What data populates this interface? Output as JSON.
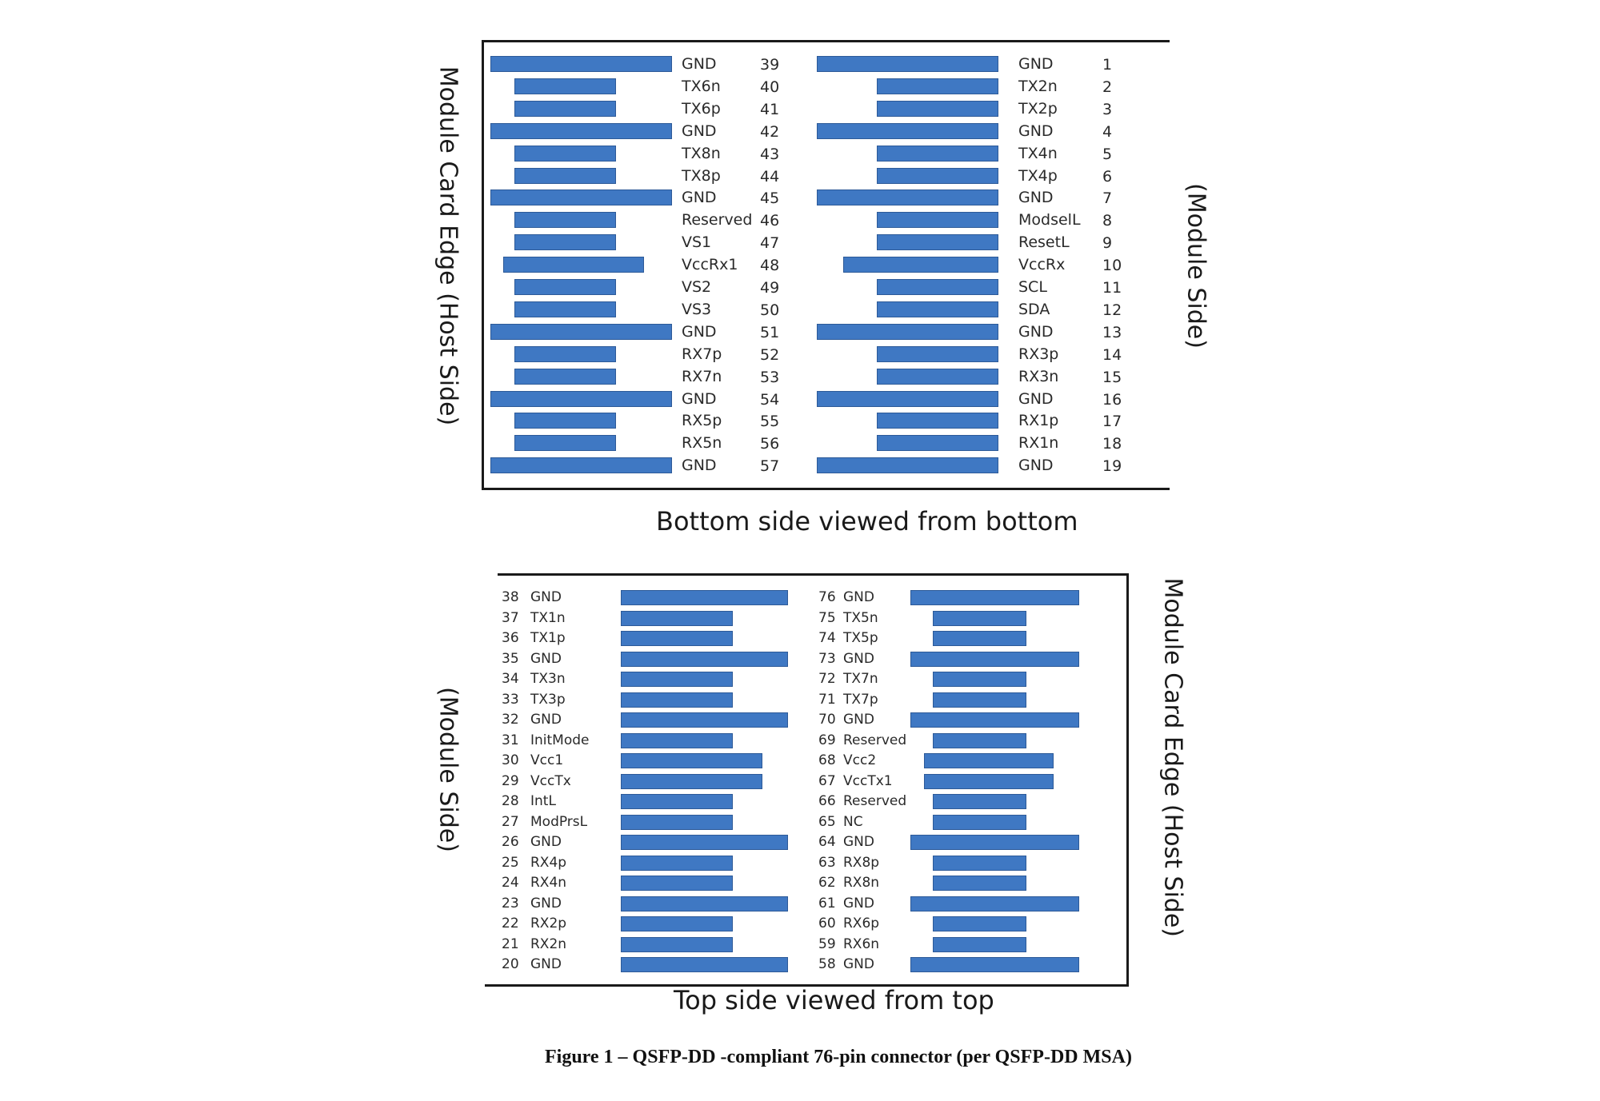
{
  "top_diagram": {
    "caption": "Bottom side viewed from bottom",
    "left_side_label": "Module Card Edge (Host Side)",
    "right_side_label": "(Module Side)",
    "left_column": [
      {
        "pin": "39",
        "signal": "GND",
        "pad": "long"
      },
      {
        "pin": "40",
        "signal": "TX6n",
        "pad": "short"
      },
      {
        "pin": "41",
        "signal": "TX6p",
        "pad": "short"
      },
      {
        "pin": "42",
        "signal": "GND",
        "pad": "long"
      },
      {
        "pin": "43",
        "signal": "TX8n",
        "pad": "short"
      },
      {
        "pin": "44",
        "signal": "TX8p",
        "pad": "short"
      },
      {
        "pin": "45",
        "signal": "GND",
        "pad": "long"
      },
      {
        "pin": "46",
        "signal": "Reserved",
        "pad": "short"
      },
      {
        "pin": "47",
        "signal": "VS1",
        "pad": "short"
      },
      {
        "pin": "48",
        "signal": "VccRx1",
        "pad": "medium"
      },
      {
        "pin": "49",
        "signal": "VS2",
        "pad": "short"
      },
      {
        "pin": "50",
        "signal": "VS3",
        "pad": "short"
      },
      {
        "pin": "51",
        "signal": "GND",
        "pad": "long"
      },
      {
        "pin": "52",
        "signal": "RX7p",
        "pad": "short"
      },
      {
        "pin": "53",
        "signal": "RX7n",
        "pad": "short"
      },
      {
        "pin": "54",
        "signal": "GND",
        "pad": "long"
      },
      {
        "pin": "55",
        "signal": "RX5p",
        "pad": "short"
      },
      {
        "pin": "56",
        "signal": "RX5n",
        "pad": "short"
      },
      {
        "pin": "57",
        "signal": "GND",
        "pad": "long"
      }
    ],
    "right_column": [
      {
        "pin": "1",
        "signal": "GND",
        "pad": "long"
      },
      {
        "pin": "2",
        "signal": "TX2n",
        "pad": "short"
      },
      {
        "pin": "3",
        "signal": "TX2p",
        "pad": "short"
      },
      {
        "pin": "4",
        "signal": "GND",
        "pad": "long"
      },
      {
        "pin": "5",
        "signal": "TX4n",
        "pad": "short"
      },
      {
        "pin": "6",
        "signal": "TX4p",
        "pad": "short"
      },
      {
        "pin": "7",
        "signal": "GND",
        "pad": "long"
      },
      {
        "pin": "8",
        "signal": "ModselL",
        "pad": "short"
      },
      {
        "pin": "9",
        "signal": "ResetL",
        "pad": "short"
      },
      {
        "pin": "10",
        "signal": "VccRx",
        "pad": "medium"
      },
      {
        "pin": "11",
        "signal": "SCL",
        "pad": "short"
      },
      {
        "pin": "12",
        "signal": "SDA",
        "pad": "short"
      },
      {
        "pin": "13",
        "signal": "GND",
        "pad": "long"
      },
      {
        "pin": "14",
        "signal": "RX3p",
        "pad": "short"
      },
      {
        "pin": "15",
        "signal": "RX3n",
        "pad": "short"
      },
      {
        "pin": "16",
        "signal": "GND",
        "pad": "long"
      },
      {
        "pin": "17",
        "signal": "RX1p",
        "pad": "short"
      },
      {
        "pin": "18",
        "signal": "RX1n",
        "pad": "short"
      },
      {
        "pin": "19",
        "signal": "GND",
        "pad": "long"
      }
    ]
  },
  "bottom_diagram": {
    "caption": "Top side viewed from top",
    "left_side_label": "(Module Side)",
    "right_side_label": "Module Card Edge (Host Side)",
    "left_column": [
      {
        "pin": "38",
        "signal": "GND",
        "pad": "long"
      },
      {
        "pin": "37",
        "signal": "TX1n",
        "pad": "short"
      },
      {
        "pin": "36",
        "signal": "TX1p",
        "pad": "short"
      },
      {
        "pin": "35",
        "signal": "GND",
        "pad": "long"
      },
      {
        "pin": "34",
        "signal": "TX3n",
        "pad": "short"
      },
      {
        "pin": "33",
        "signal": "TX3p",
        "pad": "short"
      },
      {
        "pin": "32",
        "signal": "GND",
        "pad": "long"
      },
      {
        "pin": "31",
        "signal": "InitMode",
        "pad": "short"
      },
      {
        "pin": "30",
        "signal": "Vcc1",
        "pad": "medium"
      },
      {
        "pin": "29",
        "signal": "VccTx",
        "pad": "medium"
      },
      {
        "pin": "28",
        "signal": "IntL",
        "pad": "short"
      },
      {
        "pin": "27",
        "signal": "ModPrsL",
        "pad": "short"
      },
      {
        "pin": "26",
        "signal": "GND",
        "pad": "long"
      },
      {
        "pin": "25",
        "signal": "RX4p",
        "pad": "short"
      },
      {
        "pin": "24",
        "signal": "RX4n",
        "pad": "short"
      },
      {
        "pin": "23",
        "signal": "GND",
        "pad": "long"
      },
      {
        "pin": "22",
        "signal": "RX2p",
        "pad": "short"
      },
      {
        "pin": "21",
        "signal": "RX2n",
        "pad": "short"
      },
      {
        "pin": "20",
        "signal": "GND",
        "pad": "long"
      }
    ],
    "right_column": [
      {
        "pin": "76",
        "signal": "GND",
        "pad": "long"
      },
      {
        "pin": "75",
        "signal": "TX5n",
        "pad": "short"
      },
      {
        "pin": "74",
        "signal": "TX5p",
        "pad": "short"
      },
      {
        "pin": "73",
        "signal": "GND",
        "pad": "long"
      },
      {
        "pin": "72",
        "signal": "TX7n",
        "pad": "short"
      },
      {
        "pin": "71",
        "signal": "TX7p",
        "pad": "short"
      },
      {
        "pin": "70",
        "signal": "GND",
        "pad": "long"
      },
      {
        "pin": "69",
        "signal": "Reserved",
        "pad": "short"
      },
      {
        "pin": "68",
        "signal": "Vcc2",
        "pad": "medium"
      },
      {
        "pin": "67",
        "signal": "VccTx1",
        "pad": "medium"
      },
      {
        "pin": "66",
        "signal": "Reserved",
        "pad": "short"
      },
      {
        "pin": "65",
        "signal": "NC",
        "pad": "short"
      },
      {
        "pin": "64",
        "signal": "GND",
        "pad": "long"
      },
      {
        "pin": "63",
        "signal": "RX8p",
        "pad": "short"
      },
      {
        "pin": "62",
        "signal": "RX8n",
        "pad": "short"
      },
      {
        "pin": "61",
        "signal": "GND",
        "pad": "long"
      },
      {
        "pin": "60",
        "signal": "RX6p",
        "pad": "short"
      },
      {
        "pin": "59",
        "signal": "RX6n",
        "pad": "short"
      },
      {
        "pin": "58",
        "signal": "GND",
        "pad": "long"
      }
    ]
  },
  "figure_caption": "Figure 1 – QSFP-DD -compliant 76-pin connector (per QSFP-DD MSA)",
  "colors": {
    "pad_fill": "#3f78c3",
    "pad_border": "#2d5a98",
    "frame": "#1a1a1a"
  }
}
